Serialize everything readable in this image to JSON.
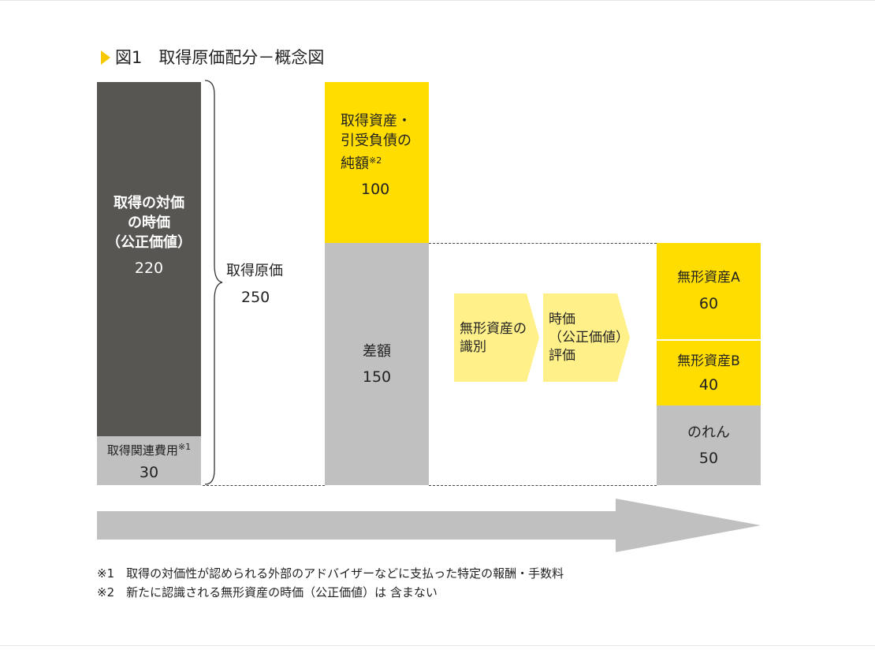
{
  "title": "図1　取得原価配分－概念図",
  "consideration": {
    "label_line1": "取得の対価",
    "label_line2": "の時価",
    "label_line3": "（公正価値）",
    "value": "220"
  },
  "acquisition_costs": {
    "label": "取得関連費用",
    "note_ref": "※1",
    "value": "30"
  },
  "acquisition_price": {
    "label": "取得原価",
    "value": "250"
  },
  "net_assets": {
    "label_line1": "取得資産・",
    "label_line2": "引受負債の",
    "label_line3": "純額",
    "note_ref": "※2",
    "value": "100"
  },
  "difference": {
    "label": "差額",
    "value": "150"
  },
  "steps": [
    {
      "line1": "無形資産の",
      "line2": "識別"
    },
    {
      "line1": "時価",
      "line2": "（公正価値）",
      "line3": "評価"
    }
  ],
  "intangible_a": {
    "label": "無形資産A",
    "value": "60"
  },
  "intangible_b": {
    "label": "無形資産B",
    "value": "40"
  },
  "goodwill": {
    "label": "のれん",
    "value": "50"
  },
  "notes": [
    "※1　取得の対価性が認められる外部のアドバイザーなどに支払った特定の報酬・手数料",
    "※2　新たに認識される無形資産の時価（公正価値）は 含まない"
  ],
  "colors": {
    "dark": "#585652",
    "gray": "#c0c0c0",
    "yellow": "#ffdd00",
    "light_yellow": "#fff08a",
    "arrow": "#c0c0c0"
  }
}
